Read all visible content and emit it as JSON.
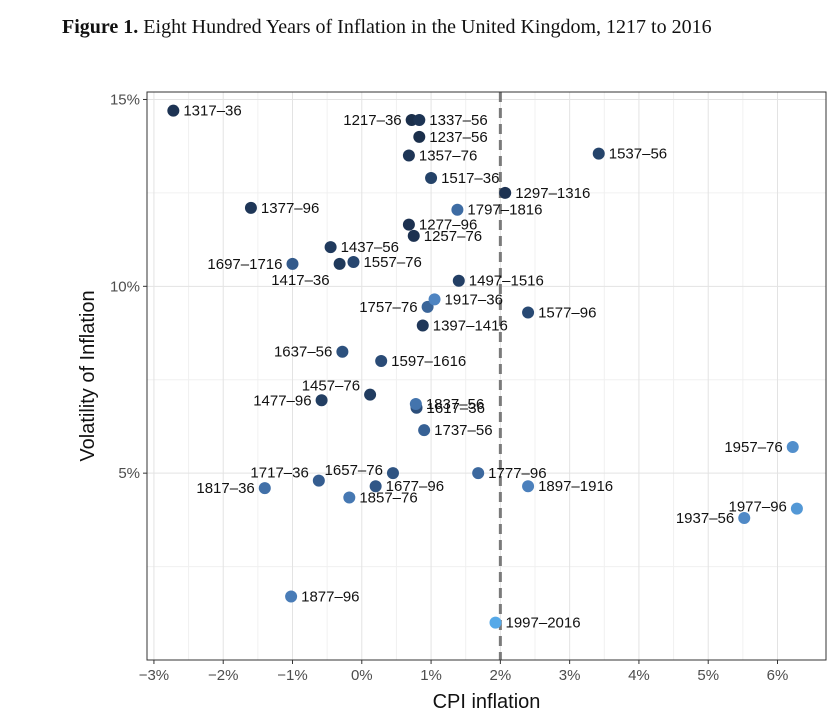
{
  "figure": {
    "label": "Figure 1.",
    "caption": "Eight Hundred Years of Inflation in the United Kingdom, 1217 to 2016"
  },
  "chart_data": {
    "type": "scatter",
    "xlabel": "CPI inflation",
    "ylabel": "Volatility of Inflation",
    "xlim": [
      -3.1,
      6.7
    ],
    "ylim": [
      0.0,
      15.2
    ],
    "xticks": [
      -3,
      -2,
      -1,
      0,
      1,
      2,
      3,
      4,
      5,
      6
    ],
    "xtick_labels": [
      "−3%",
      "−2%",
      "−1%",
      "0%",
      "1%",
      "2%",
      "3%",
      "4%",
      "5%",
      "6%"
    ],
    "yticks": [
      5,
      10,
      15
    ],
    "ytick_labels": [
      "5%",
      "10%",
      "15%"
    ],
    "grid": true,
    "reference_line": {
      "x": 2.0,
      "style": "dashed"
    },
    "color_scale": {
      "early": "#1b2f4b",
      "late": "#56a9e8"
    },
    "points": [
      {
        "label": "1217–36",
        "x": 0.72,
        "y": 14.45,
        "color": "#1b2f4b"
      },
      {
        "label": "1237–56",
        "x": 0.83,
        "y": 14.0,
        "color": "#1b2f4b"
      },
      {
        "label": "1257–76",
        "x": 0.75,
        "y": 11.35,
        "color": "#1c3150"
      },
      {
        "label": "1277–96",
        "x": 0.68,
        "y": 11.65,
        "color": "#1c3150"
      },
      {
        "label": "1297–1316",
        "x": 2.07,
        "y": 12.5,
        "color": "#1d3252"
      },
      {
        "label": "1317–36",
        "x": -2.72,
        "y": 14.7,
        "color": "#1d3353"
      },
      {
        "label": "1337–56",
        "x": 0.83,
        "y": 14.45,
        "color": "#1d3454"
      },
      {
        "label": "1357–76",
        "x": 0.68,
        "y": 13.5,
        "color": "#1e3556"
      },
      {
        "label": "1377–96",
        "x": -1.6,
        "y": 12.1,
        "color": "#1e3657"
      },
      {
        "label": "1397–1416",
        "x": 0.88,
        "y": 8.95,
        "color": "#1f3759"
      },
      {
        "label": "1417–36",
        "x": -0.32,
        "y": 10.6,
        "color": "#1f395b"
      },
      {
        "label": "1437–56",
        "x": -0.45,
        "y": 11.05,
        "color": "#203a5d"
      },
      {
        "label": "1457–76",
        "x": 0.12,
        "y": 7.1,
        "color": "#213c60"
      },
      {
        "label": "1477–96",
        "x": -0.58,
        "y": 6.95,
        "color": "#223e62"
      },
      {
        "label": "1497–1516",
        "x": 1.4,
        "y": 10.15,
        "color": "#233f65"
      },
      {
        "label": "1517–36",
        "x": 1.0,
        "y": 12.9,
        "color": "#244268"
      },
      {
        "label": "1537–56",
        "x": 3.42,
        "y": 13.55,
        "color": "#25446b"
      },
      {
        "label": "1557–76",
        "x": -0.12,
        "y": 10.65,
        "color": "#27466f"
      },
      {
        "label": "1577–96",
        "x": 2.4,
        "y": 9.3,
        "color": "#284973"
      },
      {
        "label": "1597–1616",
        "x": 0.28,
        "y": 8.0,
        "color": "#2a4b76"
      },
      {
        "label": "1617–36",
        "x": 0.79,
        "y": 6.75,
        "color": "#2c4e7a"
      },
      {
        "label": "1637–56",
        "x": -0.28,
        "y": 8.25,
        "color": "#2d517e"
      },
      {
        "label": "1657–76",
        "x": 0.45,
        "y": 5.0,
        "color": "#2f5482"
      },
      {
        "label": "1677–96",
        "x": 0.2,
        "y": 4.65,
        "color": "#315787"
      },
      {
        "label": "1697–1716",
        "x": -1.0,
        "y": 10.6,
        "color": "#335a8b"
      },
      {
        "label": "1717–36",
        "x": -0.62,
        "y": 4.8,
        "color": "#355d90"
      },
      {
        "label": "1737–56",
        "x": 0.9,
        "y": 6.15,
        "color": "#376195"
      },
      {
        "label": "1757–76",
        "x": 0.95,
        "y": 9.45,
        "color": "#3a6599"
      },
      {
        "label": "1777–96",
        "x": 1.68,
        "y": 5.0,
        "color": "#3c689e"
      },
      {
        "label": "1797–1816",
        "x": 1.38,
        "y": 12.05,
        "color": "#3e6ca3"
      },
      {
        "label": "1817–36",
        "x": -1.4,
        "y": 4.6,
        "color": "#4170a8"
      },
      {
        "label": "1837–56",
        "x": 0.78,
        "y": 6.85,
        "color": "#4374ad"
      },
      {
        "label": "1857–76",
        "x": -0.18,
        "y": 4.35,
        "color": "#4678b2"
      },
      {
        "label": "1877–96",
        "x": -1.02,
        "y": 1.7,
        "color": "#497cb7"
      },
      {
        "label": "1897–1916",
        "x": 2.4,
        "y": 4.65,
        "color": "#4b80bc"
      },
      {
        "label": "1917–36",
        "x": 1.05,
        "y": 9.65,
        "color": "#4e84c1"
      },
      {
        "label": "1937–56",
        "x": 5.52,
        "y": 3.8,
        "color": "#5089c6"
      },
      {
        "label": "1957–76",
        "x": 6.22,
        "y": 5.7,
        "color": "#528fcc"
      },
      {
        "label": "1977–96",
        "x": 6.28,
        "y": 4.05,
        "color": "#5398d6"
      },
      {
        "label": "1997–2016",
        "x": 1.93,
        "y": 1.0,
        "color": "#56a9e8"
      }
    ]
  }
}
